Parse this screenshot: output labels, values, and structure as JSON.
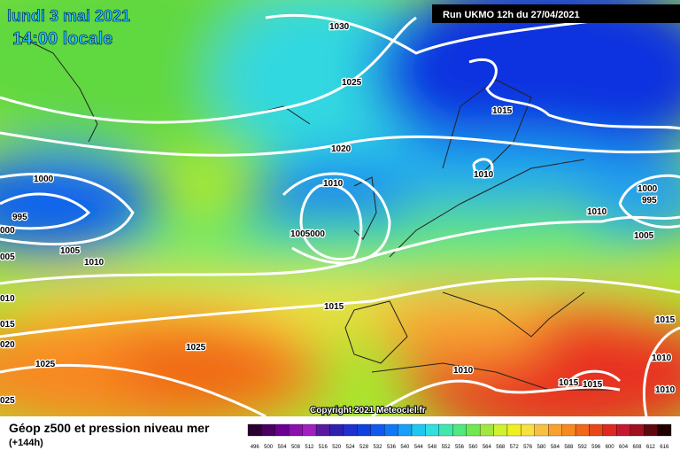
{
  "header": {
    "date": "lundi 3 mai 2021",
    "time": "14:00 locale",
    "run": "Run UKMO 12h du 27/04/2021"
  },
  "map": {
    "isobar_labels": [
      "1030",
      "1025",
      "1015",
      "1020",
      "1010",
      "1000",
      "1010",
      "995",
      "1000",
      "995",
      "1010",
      "000",
      "1005000",
      "1005",
      "005",
      "1010",
      "1005",
      "010",
      "1015",
      "015",
      "1015",
      "020",
      "1025",
      "1025",
      "1010",
      "1010",
      "1015",
      "1015",
      "1010",
      "025"
    ],
    "copyright": "Copyright 2021 Meteociel.fr"
  },
  "footer": {
    "title": "Géop z500 et pression niveau mer",
    "lead": "(+144h)"
  },
  "colorbar": {
    "labels": [
      "496",
      "500",
      "504",
      "508",
      "512",
      "516",
      "520",
      "524",
      "528",
      "532",
      "536",
      "540",
      "544",
      "548",
      "552",
      "556",
      "560",
      "564",
      "568",
      "572",
      "576",
      "580",
      "584",
      "588",
      "592",
      "596",
      "600",
      "604",
      "608",
      "612",
      "616"
    ],
    "colors": [
      "#2a0030",
      "#4a0060",
      "#6a0090",
      "#8a10b0",
      "#a020c0",
      "#5a1aa0",
      "#3020b0",
      "#1e30d0",
      "#1040e0",
      "#1058f0",
      "#1078f8",
      "#18a0f8",
      "#20c8f0",
      "#30e0e0",
      "#40e8b0",
      "#50e880",
      "#70e850",
      "#a0e840",
      "#d0f030",
      "#f0f020",
      "#f8e040",
      "#f8c040",
      "#f8a030",
      "#f88820",
      "#f06818",
      "#e84818",
      "#e02820",
      "#c81830",
      "#a01020",
      "#600810",
      "#200000"
    ]
  }
}
